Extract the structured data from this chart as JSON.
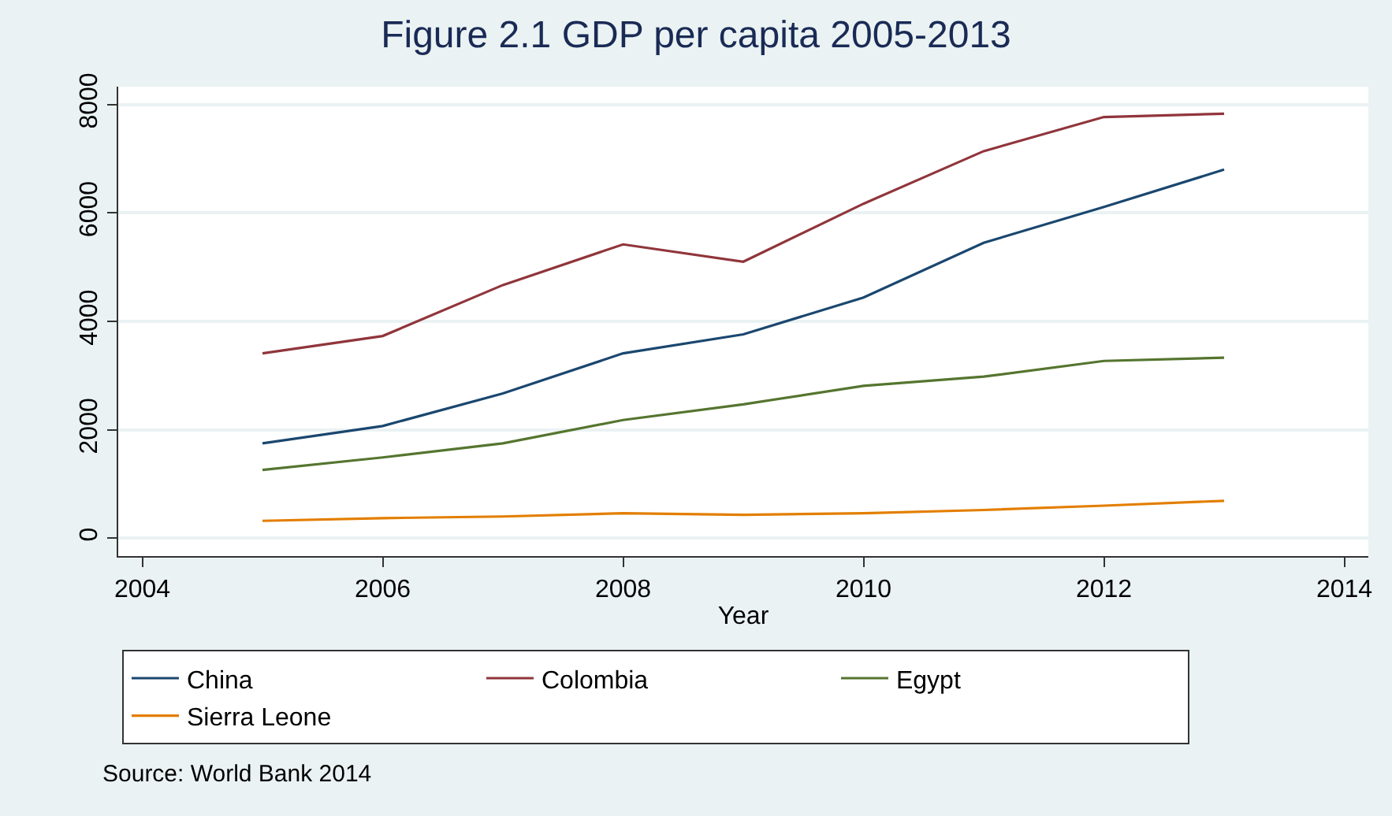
{
  "chart_data": {
    "type": "line",
    "title": "Figure 2.1 GDP per capita 2005-2013",
    "xlabel": "Year",
    "x": [
      2005,
      2006,
      2007,
      2008,
      2009,
      2010,
      2011,
      2012,
      2013
    ],
    "series": [
      {
        "name": "China",
        "color": "#1a476f",
        "values": [
          1750,
          2070,
          2670,
          3410,
          3760,
          4440,
          5450,
          6110,
          6800
        ]
      },
      {
        "name": "Colombia",
        "color": "#90353b",
        "values": [
          3410,
          3730,
          4670,
          5420,
          5100,
          6170,
          7140,
          7770,
          7830
        ]
      },
      {
        "name": "Egypt",
        "color": "#55752f",
        "values": [
          1260,
          1490,
          1750,
          2180,
          2470,
          2810,
          2980,
          3270,
          3330
        ]
      },
      {
        "name": "Sierra Leone",
        "color": "#e37e00",
        "values": [
          320,
          370,
          400,
          460,
          430,
          460,
          520,
          600,
          690
        ]
      }
    ],
    "xlim": [
      2003.8,
      2014.2
    ],
    "ylim": [
      -330,
      8330
    ],
    "xticks": [
      2004,
      2006,
      2008,
      2010,
      2012,
      2014
    ],
    "yticks": [
      0,
      2000,
      4000,
      6000,
      8000
    ],
    "grid": "y",
    "legend": "bottom",
    "marker": "none",
    "line_style": "solid",
    "annotations": [
      "Source: World Bank 2014"
    ]
  }
}
